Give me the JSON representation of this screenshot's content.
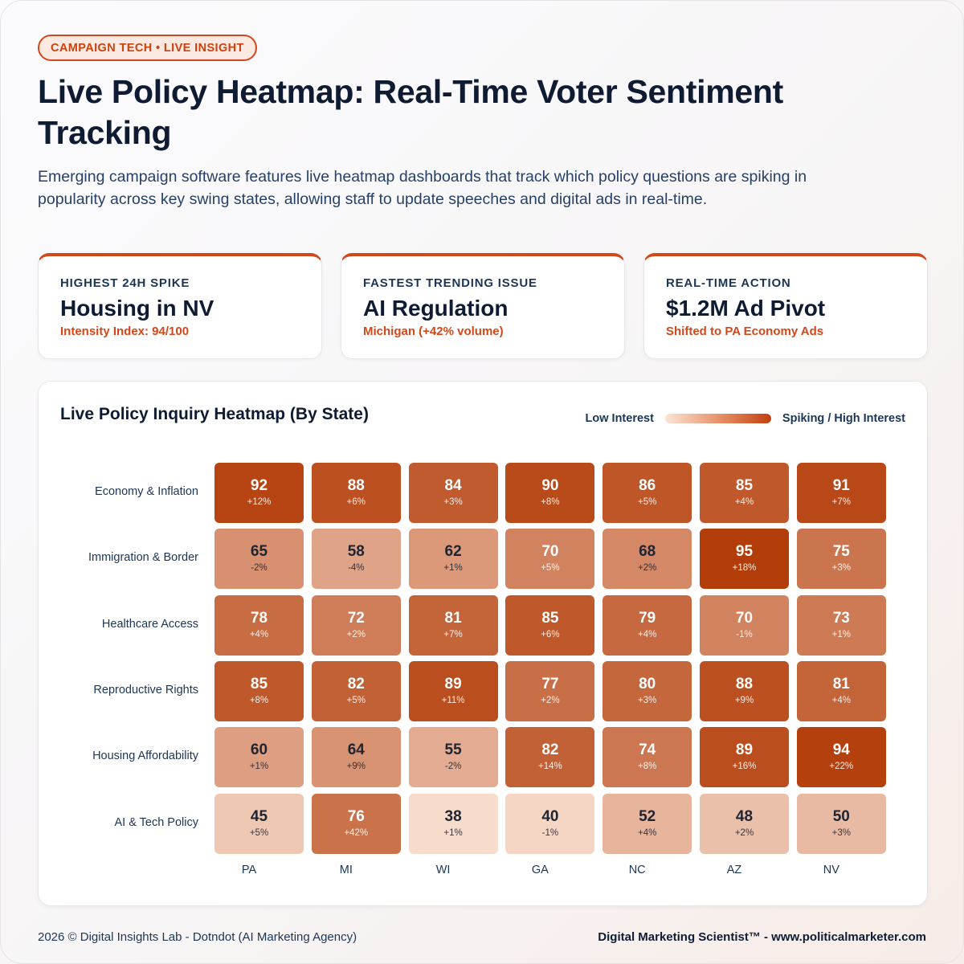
{
  "header": {
    "badge": "CAMPAIGN TECH • LIVE INSIGHT",
    "title": "Live Policy Heatmap: Real-Time Voter Sentiment Tracking",
    "description": "Emerging campaign software features live heatmap dashboards that track which policy questions are spiking in popularity across key swing states, allowing staff to update speeches and digital ads in real-time."
  },
  "stats": [
    {
      "label": "HIGHEST 24H SPIKE",
      "value": "Housing in NV",
      "sub": "Intensity Index: 94/100"
    },
    {
      "label": "FASTEST TRENDING ISSUE",
      "value": "AI Regulation",
      "sub": "Michigan (+42% volume)"
    },
    {
      "label": "REAL-TIME ACTION",
      "value": "$1.2M Ad Pivot",
      "sub": "Shifted to PA Economy Ads"
    }
  ],
  "chart_data": {
    "type": "heatmap",
    "title": "Live Policy Inquiry Heatmap (By State)",
    "legend": {
      "low": "Low Interest",
      "high": "Spiking / High Interest",
      "placement": "top-right"
    },
    "columns": [
      "PA",
      "MI",
      "WI",
      "GA",
      "NC",
      "AZ",
      "NV"
    ],
    "rows": [
      "Economy & Inflation",
      "Immigration & Border",
      "Healthcare Access",
      "Reproductive Rights",
      "Housing Affordability",
      "AI & Tech Policy"
    ],
    "values": [
      [
        92,
        88,
        84,
        90,
        86,
        85,
        91
      ],
      [
        65,
        58,
        62,
        70,
        68,
        95,
        75
      ],
      [
        78,
        72,
        81,
        85,
        79,
        70,
        73
      ],
      [
        85,
        82,
        89,
        77,
        80,
        88,
        81
      ],
      [
        60,
        64,
        55,
        82,
        74,
        89,
        94
      ],
      [
        45,
        76,
        38,
        40,
        52,
        48,
        50
      ]
    ],
    "changes": [
      [
        "+12%",
        "+6%",
        "+3%",
        "+8%",
        "+5%",
        "+4%",
        "+7%"
      ],
      [
        "-2%",
        "-4%",
        "+1%",
        "+5%",
        "+2%",
        "+18%",
        "+3%"
      ],
      [
        "+4%",
        "+2%",
        "+7%",
        "+6%",
        "+4%",
        "-1%",
        "+1%"
      ],
      [
        "+8%",
        "+5%",
        "+11%",
        "+2%",
        "+3%",
        "+9%",
        "+4%"
      ],
      [
        "+1%",
        "+9%",
        "-2%",
        "+14%",
        "+8%",
        "+16%",
        "+22%"
      ],
      [
        "+5%",
        "+42%",
        "+1%",
        "-1%",
        "+4%",
        "+2%",
        "+3%"
      ]
    ],
    "color_low": "#fbe4d6",
    "color_high": "#b23a06"
  },
  "footer": {
    "left": "2026 © Digital Insights Lab - Dotndot (AI Marketing Agency)",
    "right": "Digital Marketing Scientist™ - www.politicalmarketer.com"
  }
}
